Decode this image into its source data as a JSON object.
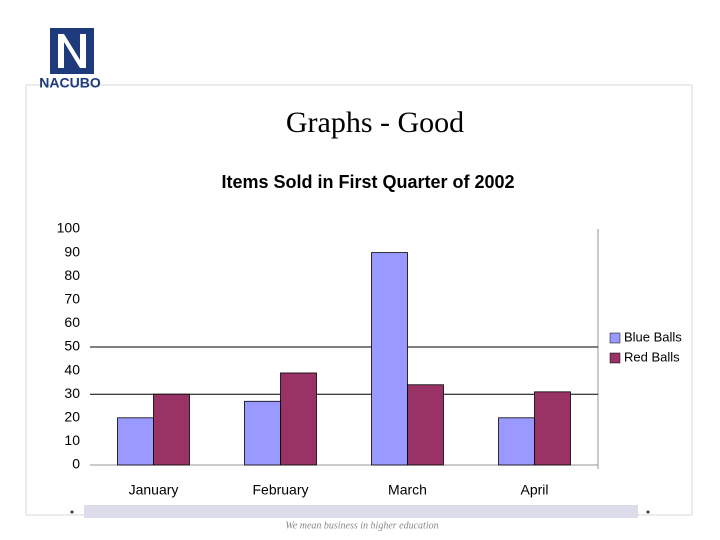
{
  "header": {
    "logo": "NACUBO",
    "title": "Graphs - Good"
  },
  "footer": "We mean business in higher education",
  "chart_data": {
    "type": "bar",
    "title": "Items Sold in First Quarter of 2002",
    "categories": [
      "January",
      "February",
      "March",
      "April"
    ],
    "series": [
      {
        "name": "Blue Balls",
        "color": "#9999ff",
        "values": [
          20,
          27,
          90,
          20
        ]
      },
      {
        "name": "Red Balls",
        "color": "#993366",
        "values": [
          30,
          39,
          34,
          31
        ]
      }
    ],
    "ylim": [
      0,
      100
    ],
    "yticks": [
      0,
      10,
      20,
      30,
      40,
      50,
      60,
      70,
      80,
      90,
      100
    ],
    "reference_lines": [
      30,
      50
    ],
    "legend": "right"
  }
}
